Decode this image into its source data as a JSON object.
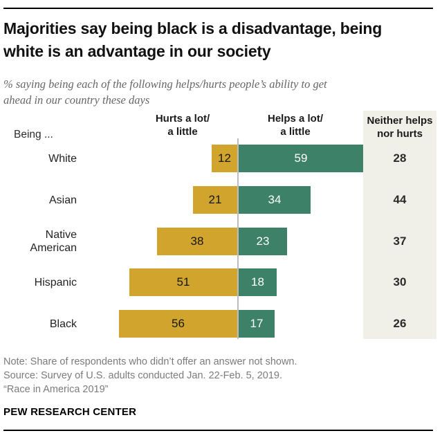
{
  "header": {
    "title_line1": "Majorities say being black is a disadvantage, being",
    "title_line2": "white is an advantage in our society",
    "subtitle_line1": "% saying being each of the following helps/hurts people’s ability to get",
    "subtitle_line2": "ahead in our country these days"
  },
  "chart_data": {
    "type": "bar",
    "orientation": "horizontal-diverging",
    "title": "Majorities say being black is a disadvantage, being white is an advantage in our society",
    "being_label": "Being ...",
    "col_headers": {
      "hurts": "Hurts a lot/\na little",
      "helps": "Helps a lot/\na little",
      "neither": "Neither helps\nnor hurts"
    },
    "categories": [
      "White",
      "Asian",
      "Native American",
      "Hispanic",
      "Black"
    ],
    "series": [
      {
        "name": "Hurts a lot/a little",
        "color": "#d1a42e",
        "text_color": "#151515",
        "values": [
          12,
          21,
          38,
          51,
          56
        ]
      },
      {
        "name": "Helps a lot/a little",
        "color": "#3d8168",
        "text_color": "#ffffff",
        "values": [
          59,
          34,
          23,
          18,
          17
        ]
      },
      {
        "name": "Neither helps nor hurts",
        "color": "#f0efe8",
        "text_color": "#2b2b2b",
        "values": [
          28,
          44,
          37,
          30,
          26
        ]
      }
    ],
    "axis": {
      "unit": "percent",
      "zero_centered": true
    },
    "legend_position": "top",
    "grid": false
  },
  "notes": {
    "line1": "Note: Share of respondents who didn’t offer an answer not shown.",
    "line2": "Source: Survey of U.S. adults conducted Jan. 22-Feb. 5, 2019.",
    "line3": "“Race in America 2019”"
  },
  "footer": {
    "brand": "PEW RESEARCH CENTER"
  }
}
